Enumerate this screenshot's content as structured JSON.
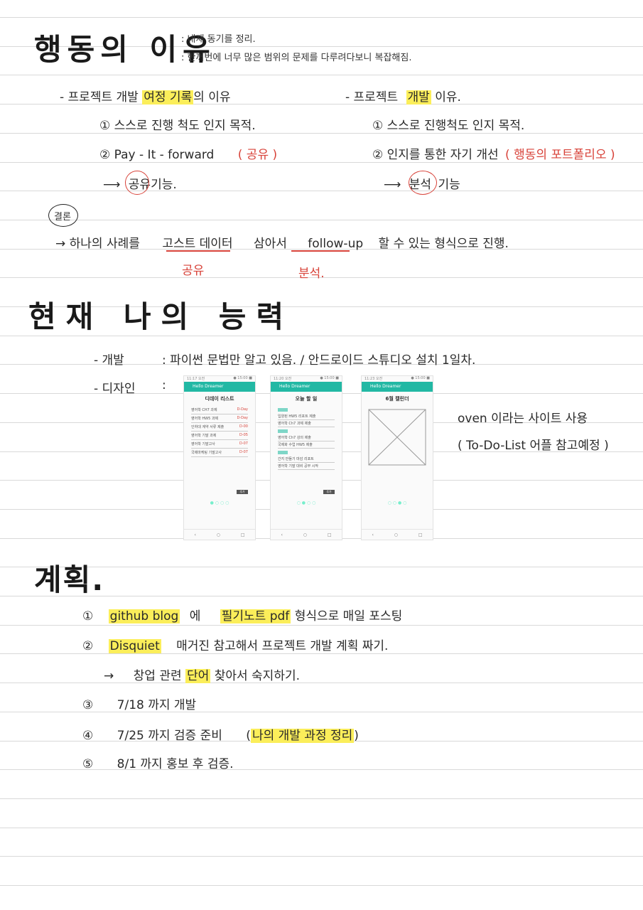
{
  "s1": {
    "title": "행동의 이유",
    "note1": ": 내재 동기를 정리.",
    "note2": ": 한꺼번에 너무 많은 범위의 문제를 다루려다보니 복잡해짐.",
    "left": {
      "head_pre": "- 프로젝트 개발",
      "head_hl": "여정 기록",
      "head_post": "의 이유",
      "i1": "① 스스로 진행 척도 인지 목적.",
      "i2": "② Pay - It - forward",
      "i2_red": "( 공유 )",
      "arrow": "⟶",
      "arrow_circled": "공유",
      "arrow_post": "기능."
    },
    "right": {
      "head_pre": "- 프로젝트",
      "head_hl": "개발",
      "head_post": "이유.",
      "i1": "① 스스로 진행척도 인지 목적.",
      "i2": "② 인지를 통한 자기 개선",
      "i2_red": "( 행동의 포트폴리오 )",
      "arrow": "⟶",
      "arrow_circled": "분석",
      "arrow_post": "기능"
    },
    "conclusion_label": "결론",
    "conclusion": {
      "pre": "→ 하나의 사례를",
      "u1": "고스트 데이터",
      "mid": "삼아서",
      "u2": "follow-up",
      "post": "할 수 있는 형식으로 진행.",
      "u1_sub": "공유",
      "u2_sub": "분석."
    }
  },
  "s2": {
    "title": "현재 나의 능력",
    "dev": "- 개발",
    "dev_text": ":  파이썬 문법만 알고 있음.  /  안드로이드 스튜디오 설치 1일차.",
    "design": "- 디자인",
    "design_colon": ":",
    "note1": "oven 이라는 사이트 사용",
    "note2": "( To-Do-List 어플 참고예정 )",
    "phone1": {
      "status_l": "11:17 오전",
      "status_r": "● 15:00 ■",
      "appbar": "Hello Dreamer",
      "title": "디데이 리스트",
      "rows": [
        {
          "name": "영어학 CH7 과제",
          "dday": "D-Day"
        },
        {
          "name": "영어학 HW5 과제",
          "dday": "D-Day"
        },
        {
          "name": "인하대 계약 서류 제출",
          "dday": "D-00"
        },
        {
          "name": "영어학 기말 과제",
          "dday": "D-05"
        },
        {
          "name": "영어학 기말고사",
          "dday": "D-07"
        },
        {
          "name": "국제마케팅 기말고사",
          "dday": "D-07"
        }
      ],
      "btn": "추가"
    },
    "phone2": {
      "status_l": "11:20 오전",
      "status_r": "● 15:00 ■",
      "appbar": "Hello Dreamer",
      "title": "오늘 할 일",
      "lines": [
        "입양된 HW5 리포트 제출",
        "영어학 Ch7 과제 제출",
        "영어학 Ch7 강의 제출",
        "국제화 수업 HW5 제출",
        "간지 만들기 마감 리포트",
        "영어학 기말 대비 공부 시작"
      ],
      "btn": "추가"
    },
    "phone3": {
      "status_l": "11:23 오전",
      "status_r": "● 15:00 ■",
      "appbar": "Hello Dreamer",
      "title": "6월 캘린더"
    }
  },
  "s3": {
    "title": "계획.",
    "items": [
      {
        "num": "①",
        "hl1": "github blog",
        "t1": "에",
        "hl2": "필기노트 pdf",
        "t2": "형식으로 매일 포스팅"
      },
      {
        "num": "②",
        "hl1": "Disquiet",
        "t1": "매거진 참고해서 프로젝트 개발 계획 짜기."
      },
      {
        "sub_arrow": "→",
        "t_pre": "창업 관련",
        "hl": "단어",
        "t_post": "찾아서 숙지하기."
      },
      {
        "num": "③",
        "t1": "7/18   까지   개발"
      },
      {
        "num": "④",
        "t1": "7/25   까지   검증 준비",
        "paren_l": "(",
        "hl": "나의 개발 과정 정리",
        "paren_r": ")"
      },
      {
        "num": "⑤",
        "t1": "8/1  까지   홍보 후   검증."
      }
    ]
  }
}
